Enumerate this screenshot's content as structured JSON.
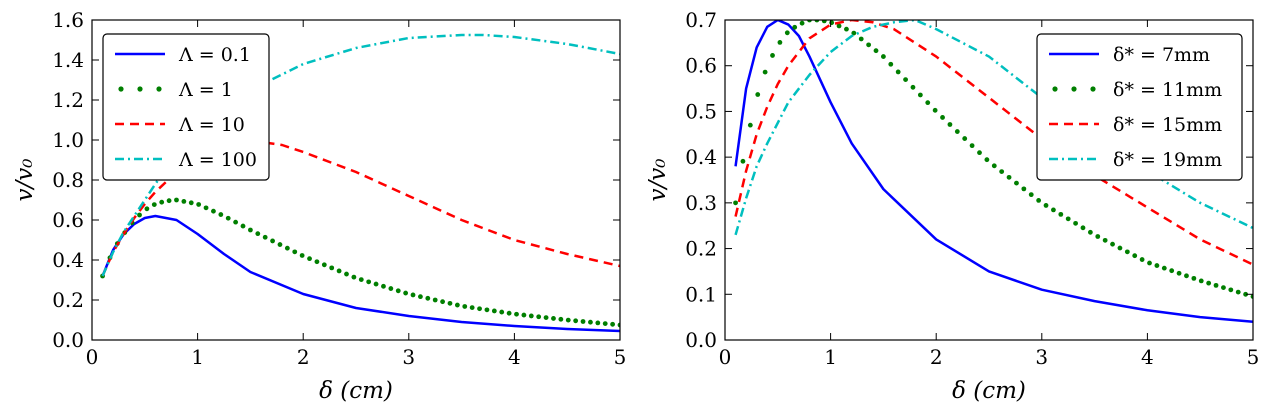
{
  "chart_data": [
    {
      "type": "line",
      "title": "",
      "xlabel": "δ (cm)",
      "ylabel": "v/v₀",
      "xlim": [
        0,
        5
      ],
      "ylim": [
        0,
        1.6
      ],
      "xticks": [
        "0",
        "1",
        "2",
        "3",
        "4",
        "5"
      ],
      "yticks": [
        "0.0",
        "0.2",
        "0.4",
        "0.6",
        "0.8",
        "1.0",
        "1.2",
        "1.4",
        "1.6"
      ],
      "grid": false,
      "legend_position": "top-left",
      "series": [
        {
          "name": "Λ = 0.1",
          "color": "#0000ff",
          "style": "solid",
          "x": [
            0.1,
            0.2,
            0.3,
            0.4,
            0.5,
            0.6,
            0.8,
            1.0,
            1.25,
            1.5,
            2.0,
            2.5,
            3.0,
            3.5,
            4.0,
            4.5,
            5.0
          ],
          "y": [
            0.32,
            0.45,
            0.53,
            0.58,
            0.61,
            0.62,
            0.6,
            0.53,
            0.43,
            0.34,
            0.23,
            0.16,
            0.12,
            0.09,
            0.07,
            0.055,
            0.045
          ]
        },
        {
          "name": "Λ = 1",
          "color": "#007f00",
          "style": "dotted",
          "x": [
            0.1,
            0.2,
            0.3,
            0.4,
            0.5,
            0.6,
            0.7,
            0.8,
            1.0,
            1.25,
            1.5,
            2.0,
            2.5,
            3.0,
            3.5,
            4.0,
            4.5,
            5.0
          ],
          "y": [
            0.32,
            0.45,
            0.53,
            0.6,
            0.65,
            0.68,
            0.695,
            0.7,
            0.68,
            0.62,
            0.55,
            0.42,
            0.31,
            0.23,
            0.17,
            0.13,
            0.1,
            0.075
          ]
        },
        {
          "name": "Λ = 10",
          "color": "#ff0000",
          "style": "dashed",
          "x": [
            0.1,
            0.2,
            0.3,
            0.4,
            0.5,
            0.6,
            0.8,
            1.0,
            1.2,
            1.4,
            1.6,
            1.8,
            2.0,
            2.5,
            3.0,
            3.5,
            4.0,
            4.5,
            5.0
          ],
          "y": [
            0.32,
            0.44,
            0.53,
            0.61,
            0.68,
            0.74,
            0.84,
            0.91,
            0.96,
            0.985,
            0.99,
            0.975,
            0.94,
            0.84,
            0.72,
            0.6,
            0.5,
            0.43,
            0.37
          ]
        },
        {
          "name": "Λ = 100",
          "color": "#00bfbf",
          "style": "dashdot",
          "x": [
            0.1,
            0.2,
            0.3,
            0.4,
            0.5,
            0.6,
            0.8,
            1.0,
            1.2,
            1.5,
            2.0,
            2.5,
            3.0,
            3.5,
            3.7,
            4.0,
            4.5,
            5.0
          ],
          "y": [
            0.32,
            0.44,
            0.54,
            0.62,
            0.7,
            0.78,
            0.93,
            1.05,
            1.14,
            1.25,
            1.38,
            1.46,
            1.51,
            1.525,
            1.525,
            1.515,
            1.48,
            1.43
          ]
        }
      ]
    },
    {
      "type": "line",
      "title": "",
      "xlabel": "δ (cm)",
      "ylabel": "v/v₀",
      "xlim": [
        0,
        5
      ],
      "ylim": [
        0,
        0.7
      ],
      "xticks": [
        "0",
        "1",
        "2",
        "3",
        "4",
        "5"
      ],
      "yticks": [
        "0.0",
        "0.1",
        "0.2",
        "0.3",
        "0.4",
        "0.5",
        "0.6",
        "0.7"
      ],
      "grid": false,
      "legend_position": "top-right",
      "series": [
        {
          "name": "δ* = 7mm",
          "color": "#0000ff",
          "style": "solid",
          "x": [
            0.1,
            0.2,
            0.3,
            0.4,
            0.5,
            0.6,
            0.7,
            0.8,
            1.0,
            1.2,
            1.5,
            2.0,
            2.5,
            3.0,
            3.5,
            4.0,
            4.5,
            5.0
          ],
          "y": [
            0.38,
            0.55,
            0.64,
            0.685,
            0.7,
            0.69,
            0.665,
            0.62,
            0.52,
            0.43,
            0.33,
            0.22,
            0.15,
            0.11,
            0.085,
            0.065,
            0.05,
            0.04
          ]
        },
        {
          "name": "δ* = 11mm",
          "color": "#007f00",
          "style": "dotted",
          "x": [
            0.1,
            0.2,
            0.3,
            0.4,
            0.5,
            0.6,
            0.7,
            0.8,
            0.9,
            1.0,
            1.2,
            1.5,
            2.0,
            2.5,
            3.0,
            3.5,
            4.0,
            4.5,
            5.0
          ],
          "y": [
            0.3,
            0.43,
            0.53,
            0.6,
            0.645,
            0.675,
            0.69,
            0.7,
            0.7,
            0.695,
            0.675,
            0.62,
            0.5,
            0.39,
            0.3,
            0.23,
            0.17,
            0.13,
            0.095
          ]
        },
        {
          "name": "δ* = 15mm",
          "color": "#ff0000",
          "style": "dashed",
          "x": [
            0.1,
            0.2,
            0.3,
            0.4,
            0.5,
            0.6,
            0.8,
            1.0,
            1.2,
            1.4,
            1.6,
            2.0,
            2.5,
            3.0,
            3.5,
            4.0,
            4.5,
            5.0
          ],
          "y": [
            0.27,
            0.37,
            0.45,
            0.51,
            0.56,
            0.6,
            0.66,
            0.69,
            0.7,
            0.695,
            0.68,
            0.62,
            0.53,
            0.44,
            0.36,
            0.29,
            0.22,
            0.165
          ]
        },
        {
          "name": "δ* = 19mm",
          "color": "#00bfbf",
          "style": "dashdot",
          "x": [
            0.1,
            0.2,
            0.3,
            0.4,
            0.6,
            0.8,
            1.0,
            1.2,
            1.4,
            1.6,
            1.8,
            2.0,
            2.5,
            3.0,
            3.5,
            4.0,
            4.5,
            5.0
          ],
          "y": [
            0.23,
            0.31,
            0.38,
            0.43,
            0.52,
            0.58,
            0.63,
            0.665,
            0.685,
            0.695,
            0.7,
            0.68,
            0.62,
            0.53,
            0.45,
            0.37,
            0.3,
            0.245
          ]
        }
      ]
    }
  ]
}
